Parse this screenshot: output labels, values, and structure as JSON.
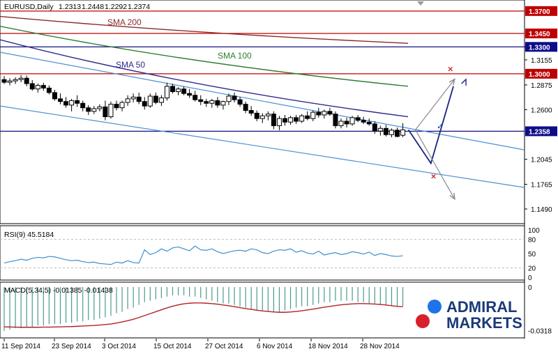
{
  "symbol_header": "EURUSD,Daily",
  "ohlc": {
    "open": "1.2313",
    "high": "1.2448",
    "low": "1.2292",
    "close": "1.2374"
  },
  "colors": {
    "candle_border": "#000000",
    "resistance_line": "#c00000",
    "support_line": "#101080",
    "sma200": "#8b2a2a",
    "sma100": "#2e7d32",
    "sma50": "#2a2a88",
    "channel": "#4a90d0",
    "rsi_line": "#3b8fd0",
    "macd_hist": "#4a9b8a",
    "macd_signal": "#b22222",
    "highlight_fill": "#0d0d8a",
    "brand_blue": "#1e73e8",
    "brand_red": "#d8202c",
    "brand_text": "#1b3a78"
  },
  "chart_data": [
    {
      "type": "candlestick",
      "name": "price",
      "x_labels": [
        "11 Sep 2014",
        "23 Sep 2014",
        "3 Oct 2014",
        "15 Oct 2014",
        "27 Oct 2014",
        "6 Nov 2014",
        "18 Nov 2014",
        "28 Nov 2014"
      ],
      "y_ticks": [
        "1.3300",
        "1.3155",
        "1.2875",
        "1.2600",
        "1.2045",
        "1.1765",
        "1.1490"
      ],
      "y_range": [
        1.135,
        1.38
      ],
      "highlighted_levels": [
        {
          "label": "1.3700",
          "value": 1.37,
          "kind": "resistance"
        },
        {
          "label": "1.3450",
          "value": 1.345,
          "kind": "resistance"
        },
        {
          "label": "1.3300",
          "value": 1.33,
          "kind": "support"
        },
        {
          "label": "1.3000",
          "value": 1.3,
          "kind": "resistance"
        },
        {
          "label": "1.2358",
          "value": 1.2358,
          "kind": "support"
        }
      ],
      "candles": [
        {
          "o": 1.2935,
          "h": 1.2975,
          "l": 1.2885,
          "c": 1.2905
        },
        {
          "o": 1.2905,
          "h": 1.295,
          "l": 1.287,
          "c": 1.292
        },
        {
          "o": 1.292,
          "h": 1.296,
          "l": 1.2885,
          "c": 1.2935
        },
        {
          "o": 1.2935,
          "h": 1.2985,
          "l": 1.2905,
          "c": 1.295
        },
        {
          "o": 1.295,
          "h": 1.298,
          "l": 1.286,
          "c": 1.289
        },
        {
          "o": 1.289,
          "h": 1.293,
          "l": 1.281,
          "c": 1.283
        },
        {
          "o": 1.283,
          "h": 1.289,
          "l": 1.279,
          "c": 1.287
        },
        {
          "o": 1.287,
          "h": 1.29,
          "l": 1.281,
          "c": 1.284
        },
        {
          "o": 1.284,
          "h": 1.287,
          "l": 1.277,
          "c": 1.279
        },
        {
          "o": 1.279,
          "h": 1.282,
          "l": 1.27,
          "c": 1.272
        },
        {
          "o": 1.272,
          "h": 1.278,
          "l": 1.266,
          "c": 1.269
        },
        {
          "o": 1.269,
          "h": 1.274,
          "l": 1.262,
          "c": 1.265
        },
        {
          "o": 1.265,
          "h": 1.272,
          "l": 1.258,
          "c": 1.27
        },
        {
          "o": 1.27,
          "h": 1.276,
          "l": 1.263,
          "c": 1.267
        },
        {
          "o": 1.267,
          "h": 1.27,
          "l": 1.258,
          "c": 1.262
        },
        {
          "o": 1.262,
          "h": 1.265,
          "l": 1.254,
          "c": 1.258
        },
        {
          "o": 1.258,
          "h": 1.264,
          "l": 1.255,
          "c": 1.261
        },
        {
          "o": 1.261,
          "h": 1.266,
          "l": 1.258,
          "c": 1.263
        },
        {
          "o": 1.263,
          "h": 1.27,
          "l": 1.248,
          "c": 1.252
        },
        {
          "o": 1.252,
          "h": 1.269,
          "l": 1.25,
          "c": 1.266
        },
        {
          "o": 1.266,
          "h": 1.27,
          "l": 1.259,
          "c": 1.262
        },
        {
          "o": 1.262,
          "h": 1.27,
          "l": 1.258,
          "c": 1.268
        },
        {
          "o": 1.268,
          "h": 1.276,
          "l": 1.264,
          "c": 1.272
        },
        {
          "o": 1.272,
          "h": 1.278,
          "l": 1.268,
          "c": 1.274
        },
        {
          "o": 1.274,
          "h": 1.279,
          "l": 1.266,
          "c": 1.269
        },
        {
          "o": 1.269,
          "h": 1.274,
          "l": 1.26,
          "c": 1.264
        },
        {
          "o": 1.264,
          "h": 1.278,
          "l": 1.262,
          "c": 1.275
        },
        {
          "o": 1.275,
          "h": 1.279,
          "l": 1.266,
          "c": 1.268
        },
        {
          "o": 1.268,
          "h": 1.276,
          "l": 1.264,
          "c": 1.273
        },
        {
          "o": 1.273,
          "h": 1.29,
          "l": 1.27,
          "c": 1.286
        },
        {
          "o": 1.286,
          "h": 1.289,
          "l": 1.278,
          "c": 1.28
        },
        {
          "o": 1.28,
          "h": 1.285,
          "l": 1.276,
          "c": 1.283
        },
        {
          "o": 1.283,
          "h": 1.286,
          "l": 1.276,
          "c": 1.278
        },
        {
          "o": 1.278,
          "h": 1.283,
          "l": 1.273,
          "c": 1.276
        },
        {
          "o": 1.276,
          "h": 1.281,
          "l": 1.269,
          "c": 1.271
        },
        {
          "o": 1.271,
          "h": 1.276,
          "l": 1.265,
          "c": 1.269
        },
        {
          "o": 1.269,
          "h": 1.272,
          "l": 1.263,
          "c": 1.267
        },
        {
          "o": 1.267,
          "h": 1.272,
          "l": 1.262,
          "c": 1.27
        },
        {
          "o": 1.27,
          "h": 1.274,
          "l": 1.262,
          "c": 1.265
        },
        {
          "o": 1.265,
          "h": 1.27,
          "l": 1.26,
          "c": 1.269
        },
        {
          "o": 1.269,
          "h": 1.278,
          "l": 1.265,
          "c": 1.275
        },
        {
          "o": 1.275,
          "h": 1.279,
          "l": 1.268,
          "c": 1.271
        },
        {
          "o": 1.271,
          "h": 1.274,
          "l": 1.263,
          "c": 1.266
        },
        {
          "o": 1.266,
          "h": 1.269,
          "l": 1.256,
          "c": 1.259
        },
        {
          "o": 1.259,
          "h": 1.264,
          "l": 1.253,
          "c": 1.256
        },
        {
          "o": 1.256,
          "h": 1.259,
          "l": 1.247,
          "c": 1.25
        },
        {
          "o": 1.25,
          "h": 1.256,
          "l": 1.245,
          "c": 1.253
        },
        {
          "o": 1.253,
          "h": 1.258,
          "l": 1.248,
          "c": 1.255
        },
        {
          "o": 1.255,
          "h": 1.258,
          "l": 1.238,
          "c": 1.242
        },
        {
          "o": 1.242,
          "h": 1.253,
          "l": 1.237,
          "c": 1.25
        },
        {
          "o": 1.25,
          "h": 1.254,
          "l": 1.242,
          "c": 1.246
        },
        {
          "o": 1.246,
          "h": 1.253,
          "l": 1.243,
          "c": 1.251
        },
        {
          "o": 1.251,
          "h": 1.254,
          "l": 1.244,
          "c": 1.247
        },
        {
          "o": 1.247,
          "h": 1.255,
          "l": 1.245,
          "c": 1.253
        },
        {
          "o": 1.253,
          "h": 1.258,
          "l": 1.248,
          "c": 1.25
        },
        {
          "o": 1.25,
          "h": 1.259,
          "l": 1.247,
          "c": 1.257
        },
        {
          "o": 1.257,
          "h": 1.262,
          "l": 1.251,
          "c": 1.254
        },
        {
          "o": 1.254,
          "h": 1.26,
          "l": 1.25,
          "c": 1.258
        },
        {
          "o": 1.258,
          "h": 1.262,
          "l": 1.253,
          "c": 1.255
        },
        {
          "o": 1.255,
          "h": 1.258,
          "l": 1.239,
          "c": 1.242
        },
        {
          "o": 1.242,
          "h": 1.25,
          "l": 1.239,
          "c": 1.247
        },
        {
          "o": 1.247,
          "h": 1.251,
          "l": 1.24,
          "c": 1.244
        },
        {
          "o": 1.244,
          "h": 1.253,
          "l": 1.242,
          "c": 1.251
        },
        {
          "o": 1.251,
          "h": 1.254,
          "l": 1.246,
          "c": 1.248
        },
        {
          "o": 1.248,
          "h": 1.252,
          "l": 1.244,
          "c": 1.246
        },
        {
          "o": 1.246,
          "h": 1.25,
          "l": 1.242,
          "c": 1.244
        },
        {
          "o": 1.244,
          "h": 1.247,
          "l": 1.233,
          "c": 1.236
        },
        {
          "o": 1.236,
          "h": 1.242,
          "l": 1.231,
          "c": 1.239
        },
        {
          "o": 1.239,
          "h": 1.243,
          "l": 1.23,
          "c": 1.232
        },
        {
          "o": 1.232,
          "h": 1.239,
          "l": 1.229,
          "c": 1.237
        },
        {
          "o": 1.237,
          "h": 1.24,
          "l": 1.229,
          "c": 1.23
        },
        {
          "o": 1.2313,
          "h": 1.2448,
          "l": 1.2292,
          "c": 1.2374
        }
      ],
      "moving_averages": [
        {
          "name": "SMA 200",
          "from": 1.364,
          "to": 1.334
        },
        {
          "name": "SMA 100",
          "from": 1.353,
          "to": 1.286
        },
        {
          "name": "SMA 50",
          "from": 1.338,
          "to": 1.252
        }
      ],
      "channel_lines": [
        {
          "from": 1.324,
          "to": 1.215
        },
        {
          "from": 1.264,
          "to": 1.173
        }
      ],
      "projection_up": {
        "points": [
          [
            72,
            1.2374
          ],
          [
            76,
            1.2
          ],
          [
            80,
            1.286
          ]
        ]
      },
      "projection_scenarios": [
        {
          "points": [
            [
              72,
              1.2374
            ],
            [
              78,
              1.294
            ]
          ]
        },
        {
          "points": [
            [
              72,
              1.2374
            ],
            [
              78,
              1.16
            ]
          ]
        }
      ],
      "markers": [
        {
          "symbol": "×",
          "bar": 77,
          "value": 1.305
        },
        {
          "symbol": "✓",
          "bar": 75,
          "value": 1.241
        },
        {
          "symbol": "×",
          "bar": 74,
          "value": 1.185
        }
      ]
    },
    {
      "type": "line",
      "name": "rsi",
      "label": "RSI(9) 45.5184",
      "y_ticks": [
        "100",
        "80",
        "50",
        "20",
        "0"
      ],
      "y_range": [
        0,
        100
      ],
      "values": [
        30,
        33,
        35,
        38,
        36,
        40,
        42,
        41,
        44,
        43,
        40,
        37,
        35,
        36,
        33,
        31,
        32,
        29,
        28,
        27,
        32,
        30,
        35,
        31,
        30,
        58,
        48,
        52,
        60,
        55,
        62,
        64,
        60,
        56,
        66,
        58,
        57,
        60,
        54,
        50,
        53,
        56,
        57,
        55,
        60,
        58,
        52,
        50,
        55,
        58,
        57,
        60,
        53,
        56,
        51,
        49,
        55,
        47,
        50,
        52,
        48,
        50,
        54,
        52,
        49,
        53,
        46,
        50,
        48,
        45,
        44,
        45.5
      ]
    },
    {
      "type": "bar",
      "name": "macd",
      "label": "MACD(5,34,5) -0.01385 -0.01438",
      "y_ticks": [
        "0",
        "-0.0318"
      ],
      "y_range": [
        -0.0345,
        0.001
      ],
      "histogram": [
        -0.032,
        -0.031,
        -0.03,
        -0.03,
        -0.029,
        -0.029,
        -0.028,
        -0.028,
        -0.027,
        -0.027,
        -0.027,
        -0.026,
        -0.026,
        -0.025,
        -0.025,
        -0.024,
        -0.024,
        -0.023,
        -0.022,
        -0.021,
        -0.019,
        -0.018,
        -0.016,
        -0.015,
        -0.013,
        -0.011,
        -0.01,
        -0.009,
        -0.008,
        -0.007,
        -0.006,
        -0.006,
        -0.006,
        -0.007,
        -0.007,
        -0.008,
        -0.009,
        -0.01,
        -0.011,
        -0.012,
        -0.012,
        -0.013,
        -0.014,
        -0.015,
        -0.016,
        -0.017,
        -0.017,
        -0.018,
        -0.018,
        -0.018,
        -0.017,
        -0.016,
        -0.015,
        -0.014,
        -0.014,
        -0.013,
        -0.012,
        -0.011,
        -0.011,
        -0.01,
        -0.01,
        -0.01,
        -0.01,
        -0.011,
        -0.011,
        -0.012,
        -0.012,
        -0.013,
        -0.013,
        -0.014,
        -0.014,
        -0.0139
      ],
      "signal": [
        -0.029,
        -0.0291,
        -0.0292,
        -0.0293,
        -0.0293,
        -0.0293,
        -0.0293,
        -0.0292,
        -0.0292,
        -0.0291,
        -0.029,
        -0.0289,
        -0.0288,
        -0.0286,
        -0.0284,
        -0.0282,
        -0.028,
        -0.0277,
        -0.0273,
        -0.0269,
        -0.0262,
        -0.0254,
        -0.0245,
        -0.0235,
        -0.0222,
        -0.0208,
        -0.0194,
        -0.018,
        -0.0166,
        -0.0152,
        -0.014,
        -0.013,
        -0.0122,
        -0.0118,
        -0.0116,
        -0.0116,
        -0.0118,
        -0.0121,
        -0.0125,
        -0.0131,
        -0.0137,
        -0.0143,
        -0.015,
        -0.0157,
        -0.0163,
        -0.0169,
        -0.0174,
        -0.0178,
        -0.0182,
        -0.0184,
        -0.0184,
        -0.0182,
        -0.0178,
        -0.0173,
        -0.0167,
        -0.0161,
        -0.0154,
        -0.0147,
        -0.0141,
        -0.0135,
        -0.013,
        -0.0126,
        -0.0123,
        -0.0121,
        -0.0121,
        -0.0122,
        -0.0124,
        -0.0127,
        -0.0131,
        -0.0136,
        -0.0141,
        -0.01438
      ]
    }
  ],
  "brand": {
    "line1": "ADMIRAL",
    "line2": "MARKETS"
  }
}
